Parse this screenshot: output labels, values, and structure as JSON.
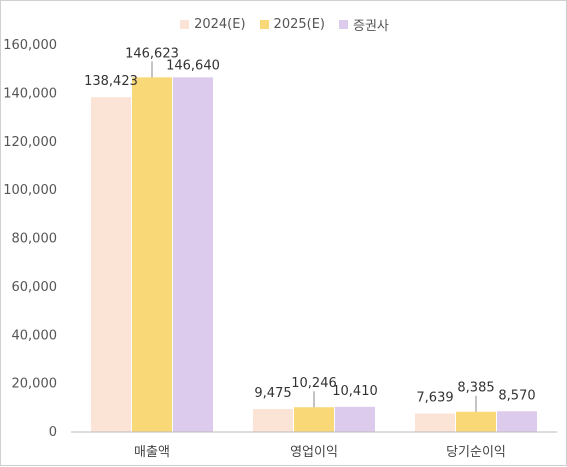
{
  "chart_data": {
    "type": "bar",
    "categories": [
      "매출액",
      "영업이익",
      "당기순이익"
    ],
    "series": [
      {
        "name": "2024(E)",
        "color": "#fbe3d6",
        "values": [
          138423,
          9475,
          7639
        ]
      },
      {
        "name": "2025(E)",
        "color": "#f9d878",
        "values": [
          146623,
          10246,
          8385
        ]
      },
      {
        "name": "증권사",
        "color": "#dccbec",
        "values": [
          146640,
          10410,
          8570
        ]
      }
    ],
    "value_labels": [
      [
        "138,423",
        "9,475",
        "7,639"
      ],
      [
        "146,623",
        "10,246",
        "8,385"
      ],
      [
        "146,640",
        "10,410",
        "8,570"
      ]
    ],
    "yticks": [
      "0",
      "20,000",
      "40,000",
      "60,000",
      "80,000",
      "100,000",
      "120,000",
      "140,000",
      "160,000"
    ],
    "ylim": [
      0,
      160000
    ],
    "legend_position": "top-center",
    "grid": false
  }
}
